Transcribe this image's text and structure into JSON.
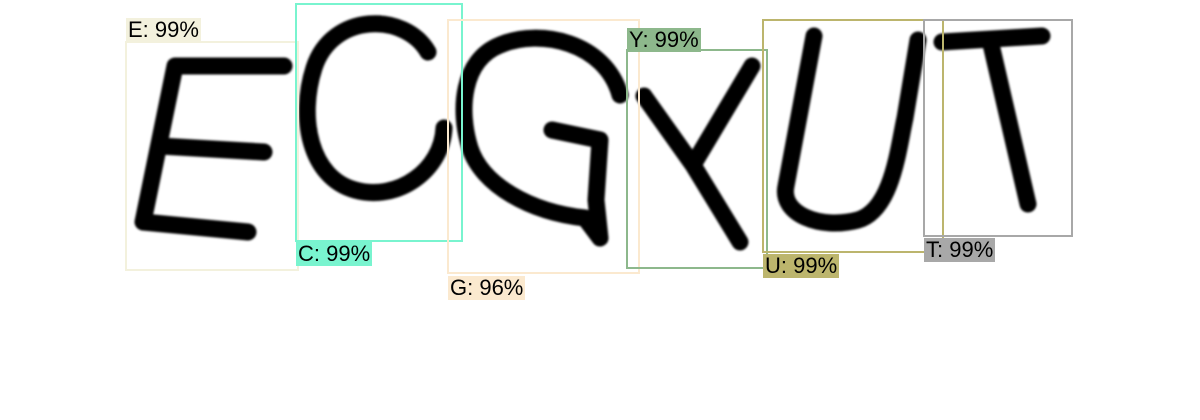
{
  "detections": [
    {
      "id": "E",
      "label": "E: 99%",
      "color": "#f3f1dd"
    },
    {
      "id": "C",
      "label": "C: 99%",
      "color": "#79f4cf"
    },
    {
      "id": "G",
      "label": "G: 96%",
      "color": "#fbe9cf"
    },
    {
      "id": "Y",
      "label": "Y: 99%",
      "color": "#8db88c"
    },
    {
      "id": "U",
      "label": "U: 99%",
      "color": "#bcb56d"
    },
    {
      "id": "T",
      "label": "T: 99%",
      "color": "#a8a8a8"
    }
  ]
}
